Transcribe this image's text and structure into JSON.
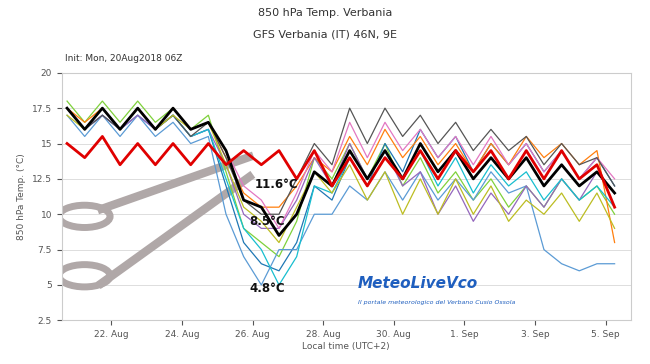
{
  "chart_data": {
    "type": "line",
    "title": "850 hPa Temp. Verbania",
    "subtitle": "GFS Verbania (IT) 46N, 9E",
    "init": "Init: Mon, 20Aug2018 06Z",
    "x_label": "Local time (UTC+2)",
    "y_label": "850 hPa Temp. (°C)",
    "annotations": [
      "11.6°C",
      "8.5°C",
      "4.8°C"
    ],
    "source": "MeteoLiveVco",
    "source_subtitle": "Il portale meteorologico del Verbano Cusio Ossola",
    "grid": true,
    "line_style": "solid",
    "x": [
      20.75,
      21.25,
      21.75,
      22.25,
      22.75,
      23.25,
      23.75,
      24.25,
      24.75,
      25.25,
      25.75,
      26.25,
      26.75,
      27.25,
      27.75,
      28.25,
      28.75,
      29.25,
      29.75,
      30.25,
      30.75,
      31.25,
      31.75,
      32.25,
      32.75,
      33.25,
      33.75,
      34.25,
      34.75,
      35.25,
      35.75,
      36.25
    ],
    "xlim": [
      20.6,
      36.7
    ],
    "xticks": [
      {
        "value": 22,
        "label": "22. Aug"
      },
      {
        "value": 24,
        "label": "24. Aug"
      },
      {
        "value": 26,
        "label": "26. Aug"
      },
      {
        "value": 28,
        "label": "28. Aug"
      },
      {
        "value": 30,
        "label": "30. Aug"
      },
      {
        "value": 32,
        "label": "1. Sep"
      },
      {
        "value": 34,
        "label": "3. Sep"
      },
      {
        "value": 36,
        "label": "5. Sep"
      }
    ],
    "ylim": [
      2.5,
      20
    ],
    "yticks": [
      2.5,
      5,
      7.5,
      10,
      12.5,
      15,
      17.5,
      20
    ],
    "series": [
      {
        "color": "#7fd13b",
        "values": [
          18,
          16.5,
          18,
          16.5,
          18,
          16.5,
          17.5,
          16,
          17,
          13,
          9,
          8,
          7,
          9.5,
          14,
          12.5,
          15,
          12.5,
          15,
          12,
          14,
          11.5,
          13,
          11,
          12.5,
          10.5,
          12,
          10.5,
          12.5,
          11,
          12,
          10
        ]
      },
      {
        "color": "#1f77b4",
        "values": [
          17.5,
          16,
          17,
          16,
          17,
          16,
          17,
          15.5,
          16,
          12,
          8,
          6.5,
          6,
          8,
          12,
          11,
          14,
          12,
          15,
          13,
          16,
          14,
          15.5,
          13,
          15,
          13.5,
          15,
          13,
          14.5,
          12.5,
          14,
          12
        ]
      },
      {
        "color": "#5b9bd5",
        "values": [
          17,
          15.5,
          17,
          15.5,
          17,
          15.5,
          16.5,
          15,
          15.5,
          10,
          7,
          5,
          7.5,
          7.5,
          10,
          10,
          12,
          11,
          13,
          11,
          13,
          11,
          12.5,
          11,
          13,
          11.5,
          12,
          7.5,
          6.5,
          6,
          6.5,
          6.5
        ]
      },
      {
        "color": "#ff7f0e",
        "values": [
          17.5,
          16.5,
          17.5,
          16,
          17.5,
          16,
          17.5,
          16,
          16.5,
          14,
          11.5,
          10.5,
          10.5,
          12,
          14,
          13,
          15.5,
          13.5,
          16,
          14,
          15.5,
          13.5,
          15,
          13,
          15,
          13.5,
          15.5,
          14,
          15,
          13.5,
          14.5,
          8
        ]
      },
      {
        "color": "#9467bd",
        "values": [
          17.5,
          16,
          17,
          16,
          17,
          16,
          17,
          15.5,
          16,
          13.5,
          10,
          9,
          9,
          11,
          14,
          12,
          15,
          12.5,
          14.5,
          12,
          13,
          10,
          12,
          9.5,
          11.5,
          10,
          12,
          10.5,
          12.5,
          11,
          13,
          11.5
        ]
      },
      {
        "color": "#e377c2",
        "values": [
          17.5,
          16,
          17.5,
          16,
          17.5,
          16,
          17.5,
          16,
          16.5,
          14.5,
          12,
          11,
          9,
          11.5,
          14.5,
          13,
          16.5,
          14,
          16.5,
          14.5,
          16,
          14,
          15.5,
          13.5,
          15.5,
          13.5,
          15,
          13,
          14.5,
          12.5,
          14,
          12.5
        ]
      },
      {
        "color": "#17becf",
        "values": [
          17.5,
          16,
          17.5,
          16,
          17.5,
          16,
          17,
          15.5,
          16,
          12.5,
          9,
          7.5,
          5,
          7,
          12,
          11.5,
          14,
          12,
          14,
          12.5,
          14.5,
          12,
          14,
          11.5,
          13.5,
          12,
          13,
          11,
          12.5,
          11,
          12,
          10.5
        ]
      },
      {
        "color": "#555555",
        "values": [
          17.5,
          16,
          17,
          16,
          17.5,
          16,
          17,
          15.5,
          16.5,
          14,
          11,
          10,
          10,
          12.5,
          15,
          13.5,
          17.5,
          15,
          17.5,
          15.5,
          17,
          15,
          16.5,
          14.5,
          16,
          14.5,
          15.5,
          13.5,
          15,
          13.5,
          14,
          12
        ]
      },
      {
        "color": "#bcbd22",
        "values": [
          17,
          16,
          17.5,
          16,
          17.5,
          16,
          17,
          16,
          16.5,
          13.5,
          10.5,
          9.5,
          8,
          10.5,
          13,
          11.5,
          13.5,
          11,
          13,
          10,
          12.5,
          10,
          12.5,
          10,
          12,
          9.5,
          11,
          10,
          11.5,
          9.5,
          11.5,
          9
        ]
      },
      {
        "color": "#000000",
        "values": [
          17.5,
          16,
          17.5,
          16,
          17.5,
          16,
          17.5,
          16,
          16.5,
          14.5,
          11,
          10.5,
          8.5,
          10,
          13,
          12,
          14.5,
          12.5,
          14.5,
          12.5,
          15,
          13,
          14.5,
          12.5,
          14,
          12.5,
          14,
          12,
          13.5,
          12,
          13,
          11.5
        ]
      },
      {
        "color": "#e00000",
        "values": [
          15,
          14,
          15.5,
          13.5,
          15,
          13.5,
          15,
          13.5,
          15,
          13.5,
          14.5,
          13.5,
          14.5,
          12.5,
          14.5,
          12,
          14,
          12,
          14,
          12.5,
          14.5,
          12.5,
          14.5,
          13,
          14.5,
          12.5,
          14.5,
          12.5,
          14.5,
          12.5,
          13.5,
          10.5
        ]
      }
    ]
  }
}
